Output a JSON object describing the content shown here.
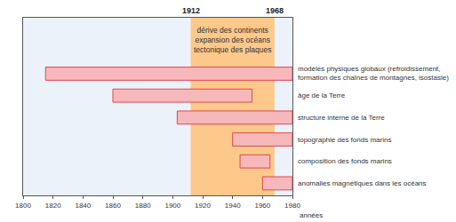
{
  "chart_data": {
    "type": "bar",
    "orientation": "horizontal",
    "categories": [
      "modèles physiques globaux (refroidissement, formation des chaînes de montagnes, isostasie)",
      "âge de la Terre",
      "structure interne de la Terre",
      "topographie des fonds marins",
      "composition des fonds marins",
      "anomalies magnétiques dans les océans"
    ],
    "start": [
      1815,
      1860,
      1903,
      1940,
      1945,
      1960
    ],
    "end": [
      1980,
      1953,
      1980,
      1980,
      1965,
      1980
    ],
    "color": "#f7b8bb",
    "period": {
      "start": 1912,
      "end": 1968,
      "text": [
        "dérive des continents",
        "expansion des océans",
        "tectonique des plaques"
      ]
    },
    "xlabel": "années",
    "xlim": [
      1800,
      1980
    ],
    "xticks": [
      1800,
      1820,
      1840,
      1860,
      1880,
      1900,
      1920,
      1940,
      1960,
      1980
    ],
    "tick_labels": "x",
    "grid": false
  }
}
